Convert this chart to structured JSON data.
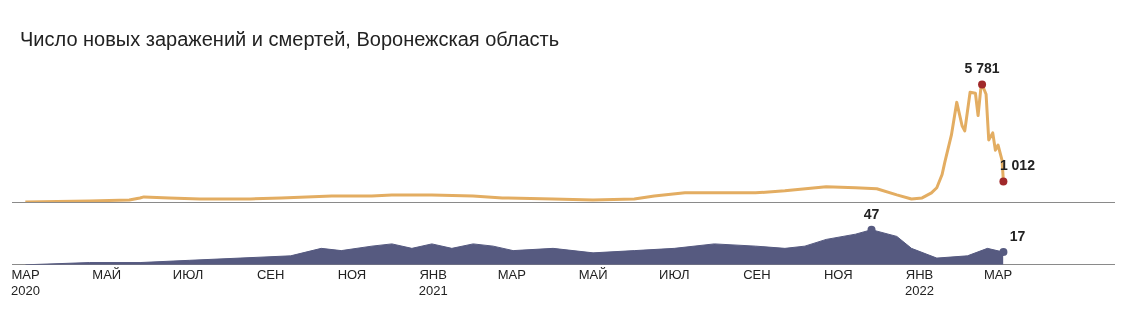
{
  "chart_data": [
    {
      "type": "line",
      "title": "Число новых заражений и смертей, Воронежская область",
      "tick_labels": false,
      "grid": false,
      "legend": false,
      "marker": "none",
      "xlim": [
        "2020-02-20",
        "2022-05-27"
      ],
      "series": [
        {
          "color": "#e3ad62",
          "x": [
            "2020-03-01",
            "2020-04-18",
            "2020-05-18",
            "2020-05-26",
            "2020-05-29",
            "2020-06-17",
            "2020-07-10",
            "2020-08-17",
            "2020-09-09",
            "2020-10-17",
            "2020-11-16",
            "2020-12-01",
            "2020-12-31",
            "2021-01-31",
            "2021-02-22",
            "2021-04-01",
            "2021-05-01",
            "2021-06-01",
            "2021-06-16",
            "2021-07-09",
            "2021-07-31",
            "2021-08-31",
            "2021-09-22",
            "2021-10-23",
            "2021-11-14",
            "2021-11-30",
            "2021-12-15",
            "2021-12-26",
            "2022-01-03",
            "2022-01-10",
            "2022-01-14",
            "2022-01-18",
            "2022-01-20",
            "2022-01-25",
            "2022-01-29",
            "2022-02-02",
            "2022-02-04",
            "2022-02-08",
            "2022-02-12",
            "2022-02-14",
            "2022-02-16",
            "2022-02-17",
            "2022-02-20",
            "2022-02-22",
            "2022-02-25",
            "2022-02-27",
            "2022-03-01",
            "2022-03-04",
            "2022-03-05"
          ],
          "values": [
            0,
            50,
            100,
            200,
            250,
            200,
            150,
            150,
            200,
            300,
            300,
            350,
            350,
            300,
            200,
            150,
            100,
            150,
            300,
            450,
            450,
            450,
            550,
            750,
            700,
            650,
            350,
            150,
            200,
            450,
            700,
            1350,
            1950,
            3300,
            4900,
            3750,
            3500,
            5400,
            5350,
            4250,
            5550,
            5781,
            5300,
            3050,
            3400,
            2550,
            2800,
            2050,
            1012
          ],
          "value_labels": [
            null,
            null,
            null,
            null,
            null,
            null,
            null,
            null,
            null,
            null,
            null,
            null,
            null,
            null,
            null,
            null,
            null,
            null,
            null,
            null,
            null,
            null,
            null,
            null,
            null,
            null,
            null,
            null,
            null,
            null,
            null,
            null,
            null,
            null,
            null,
            null,
            null,
            null,
            null,
            null,
            null,
            "5 781",
            null,
            null,
            null,
            null,
            null,
            null,
            "1 012"
          ]
        }
      ]
    },
    {
      "type": "area",
      "grid": false,
      "legend": false,
      "marker": "none",
      "xlim": [
        "2020-02-20",
        "2022-05-27"
      ],
      "tick_labels": "x",
      "xticks": [
        {
          "value": "2020-03-01",
          "label": "МАР\n2020"
        },
        {
          "value": "2020-05-01",
          "label": "МАЙ"
        },
        {
          "value": "2020-07-01",
          "label": "ИЮЛ"
        },
        {
          "value": "2020-09-01",
          "label": "СЕН"
        },
        {
          "value": "2020-11-01",
          "label": "НОЯ"
        },
        {
          "value": "2021-01-01",
          "label": "ЯНВ\n2021"
        },
        {
          "value": "2021-03-01",
          "label": "МАР"
        },
        {
          "value": "2021-05-01",
          "label": "МАЙ"
        },
        {
          "value": "2021-07-01",
          "label": "ИЮЛ"
        },
        {
          "value": "2021-09-01",
          "label": "СЕН"
        },
        {
          "value": "2021-11-01",
          "label": "НОЯ"
        },
        {
          "value": "2022-01-01",
          "label": "ЯНВ\n2022"
        },
        {
          "value": "2022-03-01",
          "label": "МАР"
        }
      ],
      "series": [
        {
          "color": "#565a80",
          "x": [
            "2020-03-01",
            "2020-04-18",
            "2020-05-26",
            "2020-07-02",
            "2020-08-09",
            "2020-09-16",
            "2020-10-09",
            "2020-10-24",
            "2020-11-16",
            "2020-12-01",
            "2020-12-16",
            "2020-12-31",
            "2021-01-15",
            "2021-01-31",
            "2021-02-15",
            "2021-03-02",
            "2021-04-01",
            "2021-05-01",
            "2021-06-01",
            "2021-07-01",
            "2021-07-31",
            "2021-08-31",
            "2021-09-22",
            "2021-10-07",
            "2021-10-23",
            "2021-11-14",
            "2021-11-26",
            "2021-12-15",
            "2021-12-26",
            "2022-01-14",
            "2022-02-06",
            "2022-02-21",
            "2022-03-05"
          ],
          "values": [
            0,
            3,
            3,
            6,
            9,
            12,
            22,
            19,
            25,
            28,
            22,
            28,
            22,
            28,
            25,
            19,
            22,
            16,
            19,
            22,
            28,
            25,
            22,
            25,
            34,
            41,
            47,
            38,
            22,
            9,
            12,
            22,
            17
          ],
          "value_labels": [
            null,
            null,
            null,
            null,
            null,
            null,
            null,
            null,
            null,
            null,
            null,
            null,
            null,
            null,
            null,
            null,
            null,
            null,
            null,
            null,
            null,
            null,
            null,
            null,
            null,
            null,
            "47",
            null,
            null,
            null,
            null,
            null,
            "17"
          ]
        }
      ]
    }
  ]
}
